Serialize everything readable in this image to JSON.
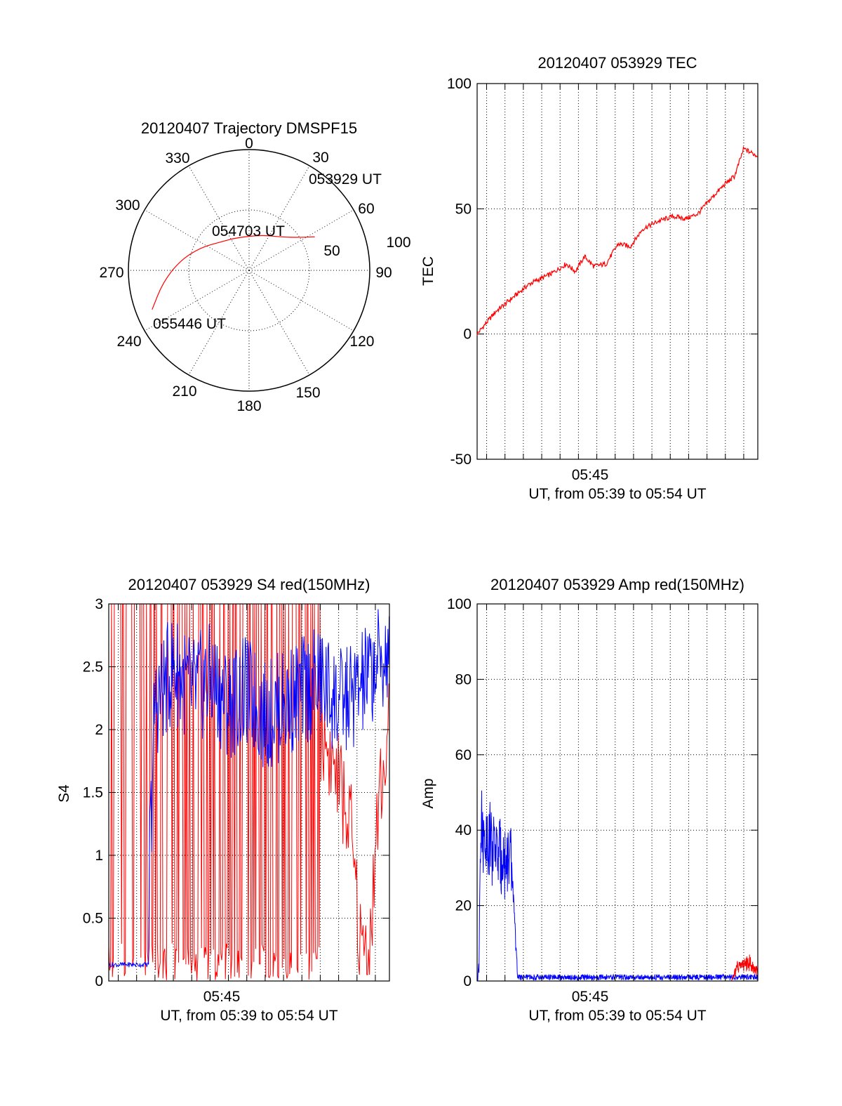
{
  "colors": {
    "red": "#ff0000",
    "blue": "#0000ff",
    "axis": "#000000",
    "background": "#ffffff"
  },
  "chart_data": [
    {
      "id": "trajectory",
      "type": "polar",
      "title": "20120407 Trajectory DMSPF15",
      "azimuth_labels": [
        "0",
        "30",
        "60",
        "90",
        "120",
        "150",
        "180",
        "210",
        "240",
        "270",
        "300",
        "330"
      ],
      "radial_ticks": [
        "50",
        "100"
      ],
      "time_labels": [
        "053929 UT",
        "054703 UT",
        "055446 UT"
      ],
      "grid": true,
      "series": [
        {
          "color": "#ff0000",
          "points": [
            {
              "az": 63,
              "el": 35
            },
            {
              "az": 57,
              "el": 45
            },
            {
              "az": 45,
              "el": 55
            },
            {
              "az": 20,
              "el": 62
            },
            {
              "az": 340,
              "el": 64
            },
            {
              "az": 315,
              "el": 60
            },
            {
              "az": 295,
              "el": 50
            },
            {
              "az": 278,
              "el": 38
            },
            {
              "az": 262,
              "el": 25
            },
            {
              "az": 248,
              "el": 12
            }
          ]
        }
      ]
    },
    {
      "id": "tec",
      "type": "line",
      "title": "20120407 053929 TEC",
      "xlabel": "UT, from 05:39 to 05:54 UT",
      "ylabel": "TEC",
      "xlim": [
        "05:39:29",
        "05:54:46"
      ],
      "ylim": [
        -50,
        100
      ],
      "yticks": [
        "100",
        "50",
        "0",
        "-50"
      ],
      "xticks": [
        "05:45"
      ],
      "grid": true,
      "series": [
        {
          "color": "#ff0000",
          "x": [
            "05:39:29",
            "05:40:30",
            "05:41:30",
            "05:42:20",
            "05:43:30",
            "05:44:20",
            "05:44:50",
            "05:45:20",
            "05:45:50",
            "05:46:30",
            "05:47:10",
            "05:47:50",
            "05:48:30",
            "05:49:20",
            "05:50:10",
            "05:50:50",
            "05:51:30",
            "05:52:20",
            "05:53:00",
            "05:53:30",
            "05:54:00",
            "05:54:46"
          ],
          "y": [
            0,
            9,
            15,
            20,
            24,
            28,
            25,
            31,
            27,
            28,
            36,
            35,
            42,
            45,
            47,
            46,
            48,
            55,
            60,
            63,
            74,
            71
          ]
        }
      ]
    },
    {
      "id": "s4",
      "type": "line",
      "title": "20120407 053929 S4 red(150MHz)",
      "xlabel": "UT, from 05:39 to 05:54 UT",
      "ylabel": "S4",
      "xlim": [
        "05:39:29",
        "05:54:46"
      ],
      "ylim": [
        0,
        3
      ],
      "yticks": [
        "3",
        "2.5",
        "2",
        "1.5",
        "1",
        "0.5",
        "0"
      ],
      "xticks": [
        "05:45"
      ],
      "grid": true,
      "series": [
        {
          "color": "#ff0000",
          "x": [
            "05:39:29",
            "05:40:00",
            "05:41:00",
            "05:42:00",
            "05:43:00",
            "05:44:00",
            "05:45:00",
            "05:46:00",
            "05:47:00",
            "05:48:00",
            "05:49:00",
            "05:50:00",
            "05:51:00",
            "05:52:00",
            "05:52:40",
            "05:53:10",
            "05:53:40",
            "05:54:10",
            "05:54:46"
          ],
          "y": [
            0.05,
            3.0,
            0.0,
            3.0,
            0.0,
            3.0,
            0.0,
            3.0,
            0.0,
            3.0,
            0.0,
            3.0,
            2.0,
            1.6,
            1.2,
            0.3,
            0.2,
            1.4,
            2.0
          ]
        },
        {
          "color": "#0000ff",
          "x": [
            "05:39:29",
            "05:40:00",
            "05:41:00",
            "05:41:30",
            "05:42:00",
            "05:43:00",
            "05:44:00",
            "05:45:00",
            "05:46:00",
            "05:47:00",
            "05:48:00",
            "05:49:00",
            "05:50:00",
            "05:51:00",
            "05:52:00",
            "05:53:00",
            "05:54:00",
            "05:54:46"
          ],
          "y": [
            0.13,
            0.13,
            0.14,
            0.14,
            2.2,
            2.5,
            2.3,
            2.4,
            2.2,
            2.3,
            2.1,
            2.2,
            2.3,
            2.4,
            2.2,
            2.3,
            2.5,
            2.6
          ]
        }
      ]
    },
    {
      "id": "amp",
      "type": "line",
      "title": "20120407 053929 Amp red(150MHz)",
      "xlabel": "UT, from 05:39 to 05:54 UT",
      "ylabel": "Amp",
      "xlim": [
        "05:39:29",
        "05:54:46"
      ],
      "ylim": [
        0,
        100
      ],
      "yticks": [
        "100",
        "80",
        "60",
        "40",
        "20",
        "0"
      ],
      "xticks": [
        "05:45"
      ],
      "grid": true,
      "series": [
        {
          "color": "#0000ff",
          "x": [
            "05:39:29",
            "05:39:35",
            "05:39:40",
            "05:40:30",
            "05:41:20",
            "05:41:30",
            "05:41:40",
            "05:43:00",
            "05:45:00",
            "05:47:00",
            "05:49:00",
            "05:51:00",
            "05:53:00",
            "05:54:46"
          ],
          "y": [
            0,
            2,
            40,
            35,
            30,
            20,
            1.5,
            1.2,
            1.0,
            1.0,
            1.2,
            1.0,
            1.5,
            1.5
          ]
        },
        {
          "color": "#ff0000",
          "x": [
            "05:39:29",
            "05:52:00",
            "05:53:20",
            "05:53:40",
            "05:54:20",
            "05:54:46"
          ],
          "y": [
            0,
            0,
            0,
            5,
            6,
            3
          ]
        }
      ]
    }
  ]
}
